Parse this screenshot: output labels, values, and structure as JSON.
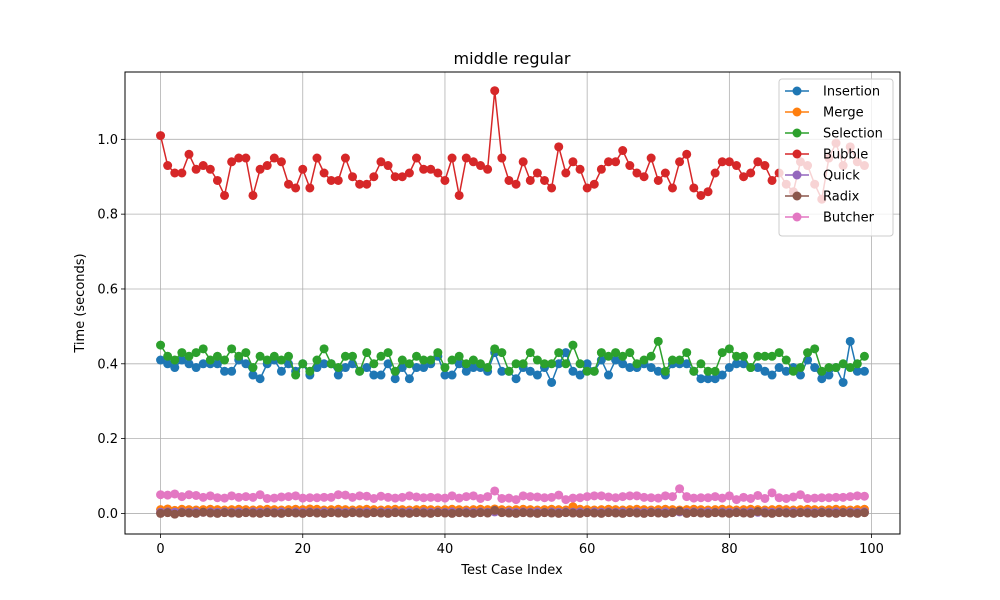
{
  "chart_data": {
    "type": "line",
    "title": "middle regular",
    "xlabel": "Test Case Index",
    "ylabel": "Time (seconds)",
    "xlim": [
      -5,
      104
    ],
    "ylim": [
      -0.055,
      1.18
    ],
    "xticks": [
      0,
      20,
      40,
      60,
      80,
      100
    ],
    "yticks": [
      0.0,
      0.2,
      0.4,
      0.6,
      0.8,
      1.0
    ],
    "xtick_labels": [
      "0",
      "20",
      "40",
      "60",
      "80",
      "100"
    ],
    "ytick_labels": [
      "0.0",
      "0.2",
      "0.4",
      "0.6",
      "0.8",
      "1.0"
    ],
    "grid": true,
    "legend_position": "top-right",
    "x": [
      0,
      1,
      2,
      3,
      4,
      5,
      6,
      7,
      8,
      9,
      10,
      11,
      12,
      13,
      14,
      15,
      16,
      17,
      18,
      19,
      20,
      21,
      22,
      23,
      24,
      25,
      26,
      27,
      28,
      29,
      30,
      31,
      32,
      33,
      34,
      35,
      36,
      37,
      38,
      39,
      40,
      41,
      42,
      43,
      44,
      45,
      46,
      47,
      48,
      49,
      50,
      51,
      52,
      53,
      54,
      55,
      56,
      57,
      58,
      59,
      60,
      61,
      62,
      63,
      64,
      65,
      66,
      67,
      68,
      69,
      70,
      71,
      72,
      73,
      74,
      75,
      76,
      77,
      78,
      79,
      80,
      81,
      82,
      83,
      84,
      85,
      86,
      87,
      88,
      89,
      90,
      91,
      92,
      93,
      94,
      95,
      96,
      97,
      98,
      99
    ],
    "series": [
      {
        "name": "Insertion",
        "color": "#1f77b4",
        "values": [
          0.41,
          0.4,
          0.39,
          0.41,
          0.4,
          0.39,
          0.4,
          0.4,
          0.4,
          0.38,
          0.38,
          0.41,
          0.4,
          0.37,
          0.36,
          0.4,
          0.41,
          0.38,
          0.4,
          0.38,
          0.4,
          0.37,
          0.39,
          0.4,
          0.4,
          0.37,
          0.39,
          0.4,
          0.38,
          0.39,
          0.37,
          0.37,
          0.4,
          0.36,
          0.39,
          0.36,
          0.39,
          0.39,
          0.4,
          0.42,
          0.37,
          0.37,
          0.4,
          0.38,
          0.39,
          0.39,
          0.38,
          0.43,
          0.38,
          0.38,
          0.36,
          0.39,
          0.38,
          0.37,
          0.39,
          0.35,
          0.4,
          0.43,
          0.38,
          0.37,
          0.4,
          0.38,
          0.41,
          0.37,
          0.41,
          0.4,
          0.39,
          0.39,
          0.4,
          0.39,
          0.38,
          0.37,
          0.4,
          0.4,
          0.4,
          0.38,
          0.36,
          0.36,
          0.36,
          0.37,
          0.39,
          0.4,
          0.4,
          0.39,
          0.39,
          0.38,
          0.37,
          0.39,
          0.38,
          0.39,
          0.37,
          0.41,
          0.39,
          0.36,
          0.37,
          0.39,
          0.35,
          0.46,
          0.38,
          0.38
        ]
      },
      {
        "name": "Merge",
        "color": "#ff7f0e",
        "values": [
          0.01,
          0.012,
          0.008,
          0.011,
          0.01,
          0.009,
          0.01,
          0.011,
          0.01,
          0.009,
          0.01,
          0.011,
          0.01,
          0.009,
          0.01,
          0.011,
          0.01,
          0.009,
          0.01,
          0.011,
          0.01,
          0.012,
          0.011,
          0.009,
          0.01,
          0.011,
          0.01,
          0.009,
          0.01,
          0.011,
          0.01,
          0.009,
          0.01,
          0.011,
          0.01,
          0.009,
          0.01,
          0.011,
          0.01,
          0.009,
          0.01,
          0.011,
          0.01,
          0.009,
          0.01,
          0.011,
          0.01,
          0.012,
          0.01,
          0.009,
          0.01,
          0.011,
          0.01,
          0.009,
          0.01,
          0.011,
          0.01,
          0.009,
          0.018,
          0.011,
          0.01,
          0.009,
          0.01,
          0.011,
          0.01,
          0.009,
          0.01,
          0.011,
          0.01,
          0.009,
          0.01,
          0.011,
          0.01,
          0.009,
          0.01,
          0.011,
          0.01,
          0.009,
          0.01,
          0.011,
          0.01,
          0.009,
          0.01,
          0.011,
          0.01,
          0.009,
          0.01,
          0.011,
          0.01,
          0.009,
          0.01,
          0.011,
          0.01,
          0.009,
          0.01,
          0.011,
          0.01,
          0.009,
          0.01,
          0.011
        ]
      },
      {
        "name": "Selection",
        "color": "#2ca02c",
        "values": [
          0.45,
          0.42,
          0.41,
          0.43,
          0.42,
          0.43,
          0.44,
          0.41,
          0.42,
          0.41,
          0.44,
          0.42,
          0.43,
          0.39,
          0.42,
          0.41,
          0.42,
          0.41,
          0.42,
          0.37,
          0.4,
          0.38,
          0.41,
          0.44,
          0.4,
          0.39,
          0.42,
          0.42,
          0.38,
          0.43,
          0.4,
          0.42,
          0.43,
          0.38,
          0.41,
          0.4,
          0.42,
          0.41,
          0.41,
          0.43,
          0.39,
          0.41,
          0.42,
          0.4,
          0.41,
          0.4,
          0.39,
          0.44,
          0.43,
          0.38,
          0.4,
          0.4,
          0.43,
          0.41,
          0.4,
          0.4,
          0.43,
          0.4,
          0.45,
          0.4,
          0.38,
          0.38,
          0.43,
          0.42,
          0.43,
          0.42,
          0.43,
          0.4,
          0.41,
          0.42,
          0.46,
          0.38,
          0.41,
          0.41,
          0.43,
          0.38,
          0.4,
          0.38,
          0.38,
          0.43,
          0.44,
          0.42,
          0.42,
          0.39,
          0.42,
          0.42,
          0.42,
          0.43,
          0.41,
          0.38,
          0.39,
          0.43,
          0.44,
          0.38,
          0.39,
          0.39,
          0.4,
          0.39,
          0.4,
          0.42
        ]
      },
      {
        "name": "Bubble",
        "color": "#d62728",
        "values": [
          1.01,
          0.93,
          0.91,
          0.91,
          0.96,
          0.92,
          0.93,
          0.92,
          0.89,
          0.85,
          0.94,
          0.95,
          0.95,
          0.85,
          0.92,
          0.93,
          0.95,
          0.94,
          0.88,
          0.87,
          0.92,
          0.87,
          0.95,
          0.91,
          0.89,
          0.89,
          0.95,
          0.9,
          0.88,
          0.88,
          0.9,
          0.94,
          0.93,
          0.9,
          0.9,
          0.91,
          0.95,
          0.92,
          0.92,
          0.91,
          0.89,
          0.95,
          0.85,
          0.95,
          0.94,
          0.93,
          0.92,
          1.13,
          0.95,
          0.89,
          0.88,
          0.94,
          0.89,
          0.91,
          0.89,
          0.87,
          0.98,
          0.91,
          0.94,
          0.92,
          0.87,
          0.88,
          0.92,
          0.94,
          0.94,
          0.97,
          0.93,
          0.91,
          0.9,
          0.95,
          0.89,
          0.91,
          0.87,
          0.94,
          0.96,
          0.87,
          0.85,
          0.86,
          0.91,
          0.94,
          0.94,
          0.93,
          0.9,
          0.91,
          0.94,
          0.93,
          0.89,
          0.91,
          0.88,
          0.86,
          0.94,
          0.93,
          0.88,
          0.84,
          0.95,
          0.99,
          0.93,
          0.98,
          0.94,
          0.93
        ]
      },
      {
        "name": "Quick",
        "color": "#9467bd",
        "values": [
          0.003,
          0.004,
          0.003,
          0.004,
          0.003,
          0.004,
          0.003,
          0.004,
          0.003,
          0.004,
          0.003,
          0.004,
          0.003,
          0.004,
          0.003,
          0.004,
          0.003,
          0.004,
          0.003,
          0.004,
          0.003,
          0.004,
          0.003,
          0.004,
          0.003,
          0.004,
          0.003,
          0.004,
          0.003,
          0.004,
          0.003,
          0.004,
          0.003,
          0.004,
          0.003,
          0.004,
          0.003,
          0.004,
          0.003,
          0.004,
          0.003,
          0.004,
          0.003,
          0.004,
          0.003,
          0.004,
          0.003,
          0.004,
          0.003,
          0.004,
          0.003,
          0.004,
          0.003,
          0.004,
          0.003,
          0.004,
          0.003,
          0.004,
          0.003,
          0.004,
          0.003,
          0.004,
          0.003,
          0.004,
          0.003,
          0.004,
          0.003,
          0.004,
          0.003,
          0.004,
          0.003,
          0.004,
          0.003,
          0.004,
          0.003,
          0.004,
          0.003,
          0.004,
          0.003,
          0.004,
          0.003,
          0.004,
          0.003,
          0.004,
          0.003,
          0.004,
          0.003,
          0.004,
          0.003,
          0.004,
          0.003,
          0.004,
          0.003,
          0.004,
          0.003,
          0.004,
          0.003,
          0.004,
          0.003,
          0.004
        ]
      },
      {
        "name": "Radix",
        "color": "#8c564b",
        "values": [
          0.0,
          0.002,
          -0.002,
          0.002,
          0.001,
          0.0,
          0.003,
          0.001,
          0.0,
          0.002,
          0.001,
          0.0,
          0.002,
          0.001,
          0.0,
          0.002,
          0.001,
          0.0,
          0.002,
          0.001,
          0.0,
          0.002,
          0.001,
          0.0,
          0.002,
          0.001,
          0.0,
          0.002,
          0.001,
          0.0,
          0.002,
          0.001,
          0.0,
          0.002,
          0.001,
          0.0,
          0.002,
          0.001,
          0.0,
          0.002,
          0.001,
          0.0,
          0.002,
          0.001,
          0.0,
          0.002,
          0.001,
          0.008,
          0.002,
          0.001,
          0.0,
          0.002,
          0.001,
          0.0,
          0.002,
          0.001,
          0.0,
          0.002,
          0.001,
          0.0,
          0.002,
          0.001,
          0.0,
          0.002,
          0.001,
          0.0,
          0.002,
          0.001,
          0.0,
          0.002,
          0.001,
          0.0,
          0.002,
          0.006,
          0.0,
          0.002,
          0.001,
          0.0,
          0.002,
          0.001,
          0.0,
          0.002,
          0.001,
          0.0,
          0.005,
          0.001,
          0.0,
          0.002,
          0.001,
          0.0,
          0.002,
          0.001,
          0.0,
          0.002,
          0.001,
          0.0,
          0.002,
          0.001,
          0.0,
          0.002
        ]
      },
      {
        "name": "Butcher",
        "color": "#e377c2",
        "values": [
          0.05,
          0.049,
          0.052,
          0.045,
          0.05,
          0.048,
          0.043,
          0.047,
          0.042,
          0.041,
          0.047,
          0.043,
          0.045,
          0.043,
          0.05,
          0.04,
          0.041,
          0.044,
          0.045,
          0.047,
          0.041,
          0.042,
          0.042,
          0.043,
          0.043,
          0.05,
          0.049,
          0.043,
          0.047,
          0.046,
          0.04,
          0.046,
          0.043,
          0.041,
          0.043,
          0.047,
          0.044,
          0.042,
          0.043,
          0.042,
          0.041,
          0.047,
          0.041,
          0.045,
          0.047,
          0.04,
          0.045,
          0.06,
          0.04,
          0.041,
          0.037,
          0.047,
          0.045,
          0.044,
          0.042,
          0.043,
          0.049,
          0.037,
          0.041,
          0.042,
          0.045,
          0.047,
          0.047,
          0.044,
          0.042,
          0.045,
          0.047,
          0.047,
          0.043,
          0.042,
          0.041,
          0.047,
          0.045,
          0.066,
          0.045,
          0.041,
          0.042,
          0.042,
          0.045,
          0.041,
          0.047,
          0.037,
          0.043,
          0.04,
          0.048,
          0.04,
          0.055,
          0.042,
          0.04,
          0.044,
          0.05,
          0.04,
          0.041,
          0.042,
          0.042,
          0.043,
          0.043,
          0.045,
          0.047,
          0.046
        ]
      }
    ]
  }
}
